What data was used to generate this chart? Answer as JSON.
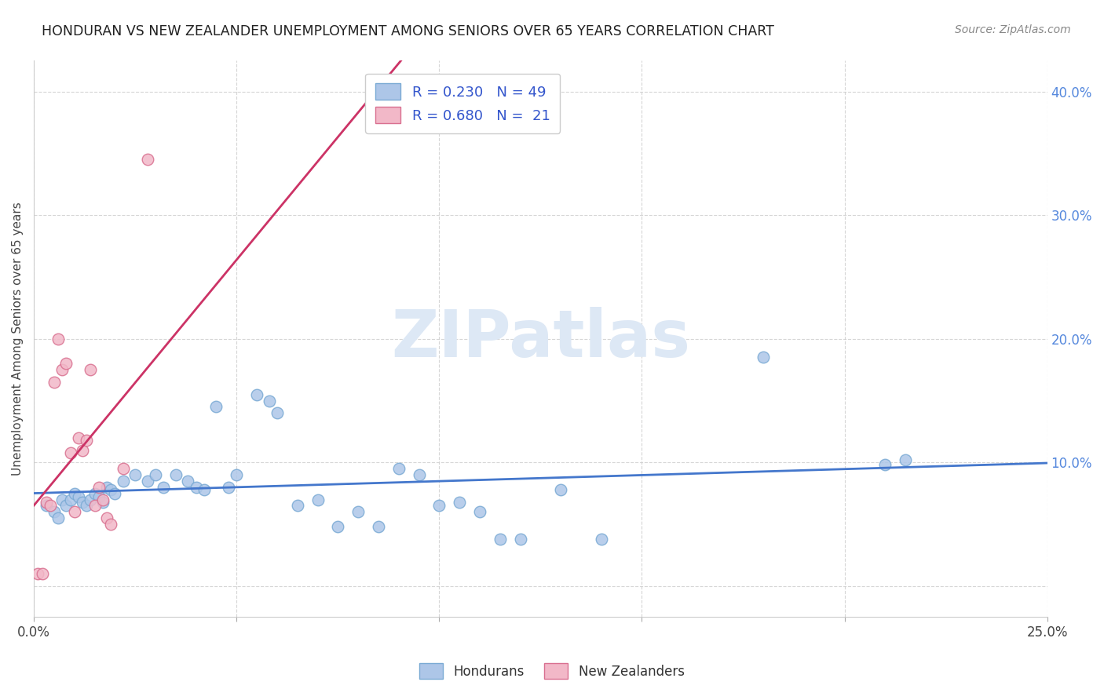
{
  "title": "HONDURAN VS NEW ZEALANDER UNEMPLOYMENT AMONG SENIORS OVER 65 YEARS CORRELATION CHART",
  "source": "Source: ZipAtlas.com",
  "ylabel": "Unemployment Among Seniors over 65 years",
  "xlim": [
    0.0,
    0.25
  ],
  "ylim": [
    -0.025,
    0.425
  ],
  "xticks": [
    0.0,
    0.05,
    0.1,
    0.15,
    0.2,
    0.25
  ],
  "yticks": [
    0.0,
    0.1,
    0.2,
    0.3,
    0.4
  ],
  "honduran_color": "#adc6e8",
  "honduran_edge": "#7aaad4",
  "nz_color": "#f2b8c8",
  "nz_edge": "#d97090",
  "trend_honduran_color": "#4477cc",
  "trend_nz_color": "#cc3366",
  "watermark": "ZIPatlas",
  "watermark_color": "#dde8f5",
  "honduran_x": [
    0.003,
    0.005,
    0.006,
    0.007,
    0.008,
    0.009,
    0.01,
    0.011,
    0.012,
    0.013,
    0.014,
    0.015,
    0.016,
    0.017,
    0.018,
    0.019,
    0.02,
    0.022,
    0.025,
    0.028,
    0.03,
    0.032,
    0.035,
    0.038,
    0.04,
    0.042,
    0.045,
    0.048,
    0.05,
    0.055,
    0.058,
    0.06,
    0.065,
    0.07,
    0.075,
    0.08,
    0.085,
    0.09,
    0.095,
    0.1,
    0.105,
    0.11,
    0.115,
    0.12,
    0.13,
    0.14,
    0.18,
    0.21,
    0.215
  ],
  "honduran_y": [
    0.065,
    0.06,
    0.055,
    0.07,
    0.065,
    0.07,
    0.075,
    0.072,
    0.068,
    0.065,
    0.07,
    0.075,
    0.072,
    0.068,
    0.08,
    0.078,
    0.075,
    0.085,
    0.09,
    0.085,
    0.09,
    0.08,
    0.09,
    0.085,
    0.08,
    0.078,
    0.145,
    0.08,
    0.09,
    0.155,
    0.15,
    0.14,
    0.065,
    0.07,
    0.048,
    0.06,
    0.048,
    0.095,
    0.09,
    0.065,
    0.068,
    0.06,
    0.038,
    0.038,
    0.078,
    0.038,
    0.185,
    0.098,
    0.102
  ],
  "nz_x": [
    0.001,
    0.002,
    0.003,
    0.004,
    0.005,
    0.006,
    0.007,
    0.008,
    0.009,
    0.01,
    0.011,
    0.012,
    0.013,
    0.014,
    0.015,
    0.016,
    0.017,
    0.018,
    0.019,
    0.022,
    0.028
  ],
  "nz_y": [
    0.01,
    0.01,
    0.068,
    0.065,
    0.165,
    0.2,
    0.175,
    0.18,
    0.108,
    0.06,
    0.12,
    0.11,
    0.118,
    0.175,
    0.065,
    0.08,
    0.07,
    0.055,
    0.05,
    0.095,
    0.345
  ]
}
